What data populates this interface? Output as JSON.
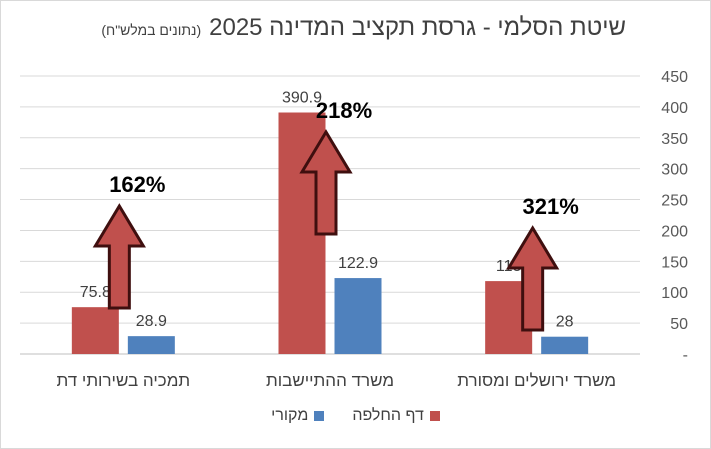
{
  "chart_data": {
    "type": "bar",
    "title": "שיטת הסלמי - גרסת תקציב המדינה 2025",
    "subtitle": "(נתונים במלש\"ח)",
    "categories": [
      "משרד ירושלים ומסורת",
      "משרד ההתיישבות",
      "תמכיה בשירותי דת"
    ],
    "series": [
      {
        "name": "דף החלפה",
        "color": "#c0504d",
        "values": [
          118,
          390.9,
          75.8
        ]
      },
      {
        "name": "מקורי",
        "color": "#4f81bd",
        "values": [
          28,
          122.9,
          28.9
        ]
      }
    ],
    "value_labels": [
      [
        "118",
        "390.9",
        "75.8"
      ],
      [
        "28",
        "122.9",
        "28.9"
      ]
    ],
    "growth_labels": [
      "321%",
      "218%",
      "162%"
    ],
    "yticks": [
      "-",
      "50",
      "100",
      "150",
      "200",
      "250",
      "300",
      "350",
      "400",
      "450"
    ],
    "ylim": [
      0,
      450
    ],
    "y_axis_side": "right",
    "category_order": "right-to-left",
    "grid": true,
    "legend": "bottom"
  }
}
